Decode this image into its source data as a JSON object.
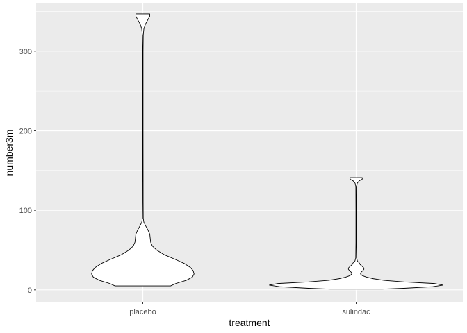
{
  "chart_data": {
    "type": "violin",
    "title": "",
    "xlabel": "treatment",
    "ylabel": "number3m",
    "categories": [
      "placebo",
      "sulindac"
    ],
    "ylim": [
      -15,
      360
    ],
    "yticks": [
      0,
      100,
      200,
      300
    ],
    "ytick_labels": [
      "0",
      "100",
      "200",
      "300"
    ],
    "grid": true,
    "legend": "none",
    "colors": {
      "panel": "#ebebeb",
      "grid_major": "#ffffff",
      "violin_fill": "#ffffff",
      "violin_stroke": "#000000",
      "tick_text": "#4d4d4d",
      "axis_title": "#000000"
    },
    "violins": [
      {
        "category": "placebo",
        "range": [
          5,
          347
        ],
        "density_profile": [
          [
            5,
            0.32
          ],
          [
            8,
            0.38
          ],
          [
            12,
            0.5
          ],
          [
            16,
            0.57
          ],
          [
            20,
            0.59
          ],
          [
            24,
            0.58
          ],
          [
            28,
            0.55
          ],
          [
            33,
            0.48
          ],
          [
            38,
            0.38
          ],
          [
            44,
            0.25
          ],
          [
            50,
            0.16
          ],
          [
            55,
            0.11
          ],
          [
            60,
            0.09
          ],
          [
            65,
            0.085
          ],
          [
            70,
            0.08
          ],
          [
            75,
            0.06
          ],
          [
            80,
            0.035
          ],
          [
            85,
            0.012
          ],
          [
            90,
            0.005
          ],
          [
            110,
            0.004
          ],
          [
            200,
            0.003
          ],
          [
            300,
            0.003
          ],
          [
            320,
            0.005
          ],
          [
            328,
            0.012
          ],
          [
            334,
            0.03
          ],
          [
            340,
            0.06
          ],
          [
            344,
            0.08
          ],
          [
            347,
            0.08
          ]
        ]
      },
      {
        "category": "sulindac",
        "range": [
          1,
          141
        ],
        "density_profile": [
          [
            1,
            0.3
          ],
          [
            2,
            0.55
          ],
          [
            4,
            0.88
          ],
          [
            6,
            1.0
          ],
          [
            8,
            0.9
          ],
          [
            10,
            0.55
          ],
          [
            12,
            0.32
          ],
          [
            14,
            0.2
          ],
          [
            16,
            0.12
          ],
          [
            18,
            0.07
          ],
          [
            20,
            0.05
          ],
          [
            22,
            0.055
          ],
          [
            24,
            0.075
          ],
          [
            26,
            0.09
          ],
          [
            28,
            0.085
          ],
          [
            30,
            0.065
          ],
          [
            32,
            0.045
          ],
          [
            34,
            0.035
          ],
          [
            36,
            0.015
          ],
          [
            40,
            0.005
          ],
          [
            60,
            0.003
          ],
          [
            100,
            0.003
          ],
          [
            130,
            0.004
          ],
          [
            134,
            0.012
          ],
          [
            137,
            0.035
          ],
          [
            139,
            0.07
          ],
          [
            141,
            0.07
          ]
        ]
      }
    ]
  }
}
